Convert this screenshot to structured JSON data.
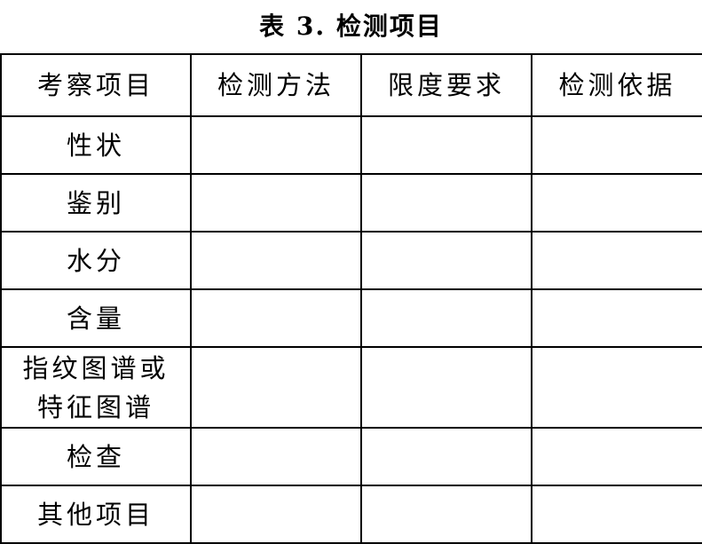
{
  "title": "表 3.  检测项目",
  "table": {
    "headers": [
      "考察项目",
      "检测方法",
      "限度要求",
      "检测依据"
    ],
    "rows": [
      {
        "item": "性状"
      },
      {
        "item": "鉴别"
      },
      {
        "item": "水分"
      },
      {
        "item": "含量"
      },
      {
        "item": "指纹图谱或特征图谱"
      },
      {
        "item": "检查"
      },
      {
        "item": "其他项目"
      }
    ]
  }
}
